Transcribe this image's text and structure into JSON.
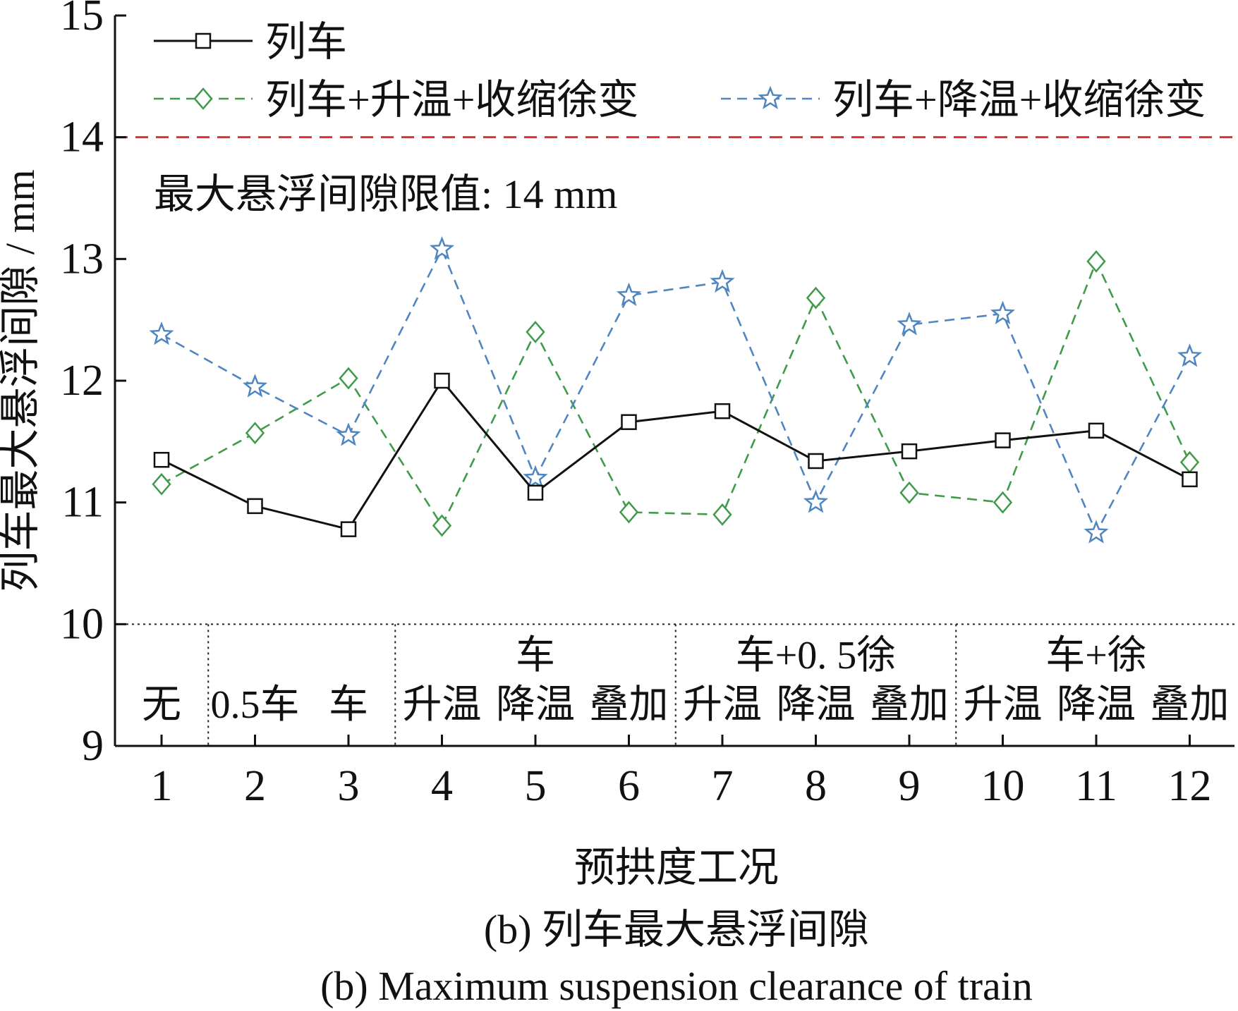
{
  "chart_data": {
    "type": "line",
    "x": [
      1,
      2,
      3,
      4,
      5,
      6,
      7,
      8,
      9,
      10,
      11,
      12
    ],
    "xlabel": "预拱度工况",
    "ylabel": "列车最大悬浮间隙 / mm",
    "ylim": [
      9,
      15
    ],
    "yticks": [
      9,
      10,
      11,
      12,
      13,
      14,
      15
    ],
    "series": [
      {
        "name": "列车",
        "marker": "square",
        "dash": "solid",
        "color": "#111111",
        "values": [
          11.35,
          10.97,
          10.78,
          12.0,
          11.08,
          11.66,
          11.75,
          11.34,
          11.42,
          11.51,
          11.59,
          11.19
        ]
      },
      {
        "name": "列车+升温+收缩徐变",
        "marker": "diamond",
        "dash": "dashed",
        "color": "#3f9a4a",
        "values": [
          11.15,
          11.57,
          12.02,
          10.81,
          12.4,
          10.92,
          10.9,
          12.68,
          11.08,
          11.0,
          12.98,
          11.33
        ]
      },
      {
        "name": "列车+降温+收缩徐变",
        "marker": "star",
        "dash": "dashed",
        "color": "#4f86c0",
        "values": [
          12.38,
          11.95,
          11.55,
          13.08,
          11.2,
          12.7,
          12.81,
          11.0,
          12.46,
          12.55,
          10.75,
          12.2
        ]
      }
    ],
    "reference_line": {
      "value": 14,
      "label": "最大悬浮间隙限值: 14 mm",
      "color": "#e03030"
    },
    "legend_position": "top",
    "condition_groups": [
      {
        "top": "",
        "items": [
          "无"
        ],
        "span": [
          1,
          1
        ]
      },
      {
        "top": "",
        "items": [
          "0.5车",
          "车"
        ],
        "span": [
          2,
          3
        ]
      },
      {
        "top": "车",
        "items": [
          "升温",
          "降温",
          "叠加"
        ],
        "span": [
          4,
          6
        ]
      },
      {
        "top": "车+0. 5徐",
        "items": [
          "升温",
          "降温",
          "叠加"
        ],
        "span": [
          7,
          9
        ]
      },
      {
        "top": "车+徐",
        "items": [
          "升温",
          "降温",
          "叠加"
        ],
        "span": [
          10,
          12
        ]
      }
    ]
  },
  "caption": {
    "cn": "(b) 列车最大悬浮间隙",
    "en": "(b) Maximum suspension clearance of train"
  }
}
